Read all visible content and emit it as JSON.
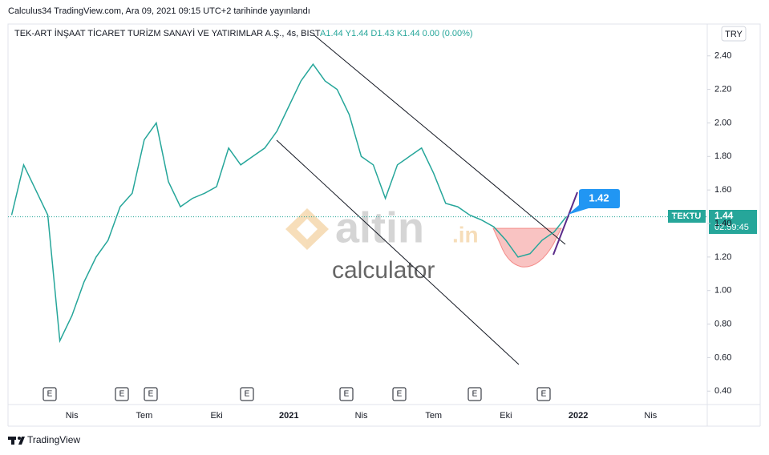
{
  "header": {
    "publisher": "Calculus34 TradingView.com, Ara 09, 2021 09:15 UTC+2 tarihinde yayınlandı",
    "currency": "TRY",
    "footer": "TradingView"
  },
  "watermark": {
    "brand": "altin",
    "domain": ".in",
    "tagline": "calculator"
  },
  "annotations": {
    "target_label": "1.42",
    "earnings_marker": "E"
  },
  "price_label": {
    "symbol": "TEKTU",
    "price": 1.44,
    "countdown": "02:59:45"
  },
  "chart_data": {
    "type": "line",
    "title": "TEK-ART İNŞAAT TİCARET TURİZM SANAYİ VE YATIRIMLAR A.Ş., 4s, BIST",
    "subtitle": "A1.44 Y1.44 D1.43 K1.44 0.00 (0.00%)",
    "categories": [
      null,
      null,
      null,
      null,
      null,
      "Nis",
      null,
      null,
      null,
      null,
      null,
      "Tem",
      null,
      null,
      null,
      null,
      null,
      "Eki",
      null,
      null,
      null,
      null,
      null,
      "2021",
      null,
      null,
      null,
      null,
      null,
      "Nis",
      null,
      null,
      null,
      null,
      null,
      "Tem",
      null,
      null,
      null,
      null,
      null,
      "Eki",
      null,
      null,
      null,
      null,
      null,
      "2022",
      null,
      null,
      null,
      null,
      null,
      "Nis",
      null,
      null,
      null,
      null
    ],
    "series": [
      {
        "color": "#26a69a",
        "values": [
          1.45,
          1.75,
          1.6,
          1.45,
          0.7,
          0.85,
          1.05,
          1.2,
          1.3,
          1.5,
          1.58,
          1.9,
          2.0,
          1.65,
          1.5,
          1.55,
          1.58,
          1.62,
          1.85,
          1.75,
          1.8,
          1.85,
          1.95,
          2.1,
          2.25,
          2.35,
          2.25,
          2.2,
          2.05,
          1.8,
          1.75,
          1.55,
          1.75,
          1.8,
          1.85,
          1.7,
          1.52,
          1.5,
          1.45,
          1.42,
          1.38,
          1.3,
          1.2,
          1.22,
          1.3,
          1.35,
          1.44,
          null,
          null,
          null,
          null,
          null,
          null,
          null,
          null,
          null,
          null,
          null
        ]
      }
    ],
    "ylim": [
      0.32,
      2.59
    ],
    "yticks": [
      {
        "value": 0.4,
        "label": "0.40"
      },
      {
        "value": 0.6,
        "label": "0.60"
      },
      {
        "value": 0.8,
        "label": "0.80"
      },
      {
        "value": 1,
        "label": "1.00"
      },
      {
        "value": 1.2,
        "label": "1.20"
      },
      {
        "value": 1.4,
        "label": "1.40"
      },
      {
        "value": 1.6,
        "label": "1.60"
      },
      {
        "value": 1.8,
        "label": "1.80"
      },
      {
        "value": 2,
        "label": "2.00"
      },
      {
        "value": 2.2,
        "label": "2.20"
      },
      {
        "value": 2.4,
        "label": "2.40"
      }
    ],
    "grid": false
  }
}
